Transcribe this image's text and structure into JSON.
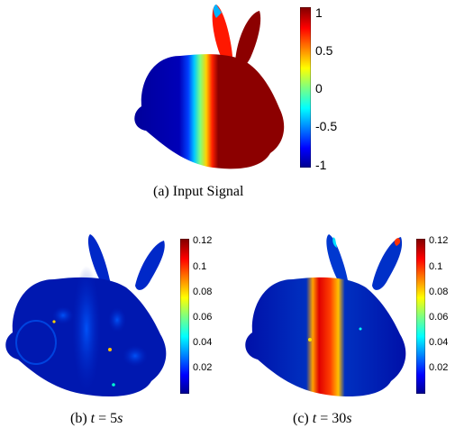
{
  "panels": [
    {
      "id": "a",
      "caption_prefix": "(a)",
      "caption_text": "Input Signal",
      "colorbar": {
        "ticks": [
          "1",
          "0.5",
          "0",
          "-0.5",
          "-1"
        ],
        "range": [
          -1,
          1
        ]
      }
    },
    {
      "id": "b",
      "caption_prefix": "(b)",
      "caption_var": "t",
      "caption_eq": " = ",
      "caption_val": "5",
      "caption_unit": "s",
      "colorbar": {
        "ticks": [
          "0.12",
          "0.1",
          "0.08",
          "0.06",
          "0.04",
          "0.02"
        ],
        "range": [
          0,
          0.12
        ]
      }
    },
    {
      "id": "c",
      "caption_prefix": "(c)",
      "caption_var": "t",
      "caption_eq": " = ",
      "caption_val": "30",
      "caption_unit": "s",
      "colorbar": {
        "ticks": [
          "0.12",
          "0.1",
          "0.08",
          "0.06",
          "0.04",
          "0.02"
        ],
        "range": [
          0,
          0.12
        ]
      }
    }
  ],
  "colors": {
    "jet_low": "#00008f",
    "jet_mid": "#00ffff",
    "jet_high": "#800000"
  }
}
